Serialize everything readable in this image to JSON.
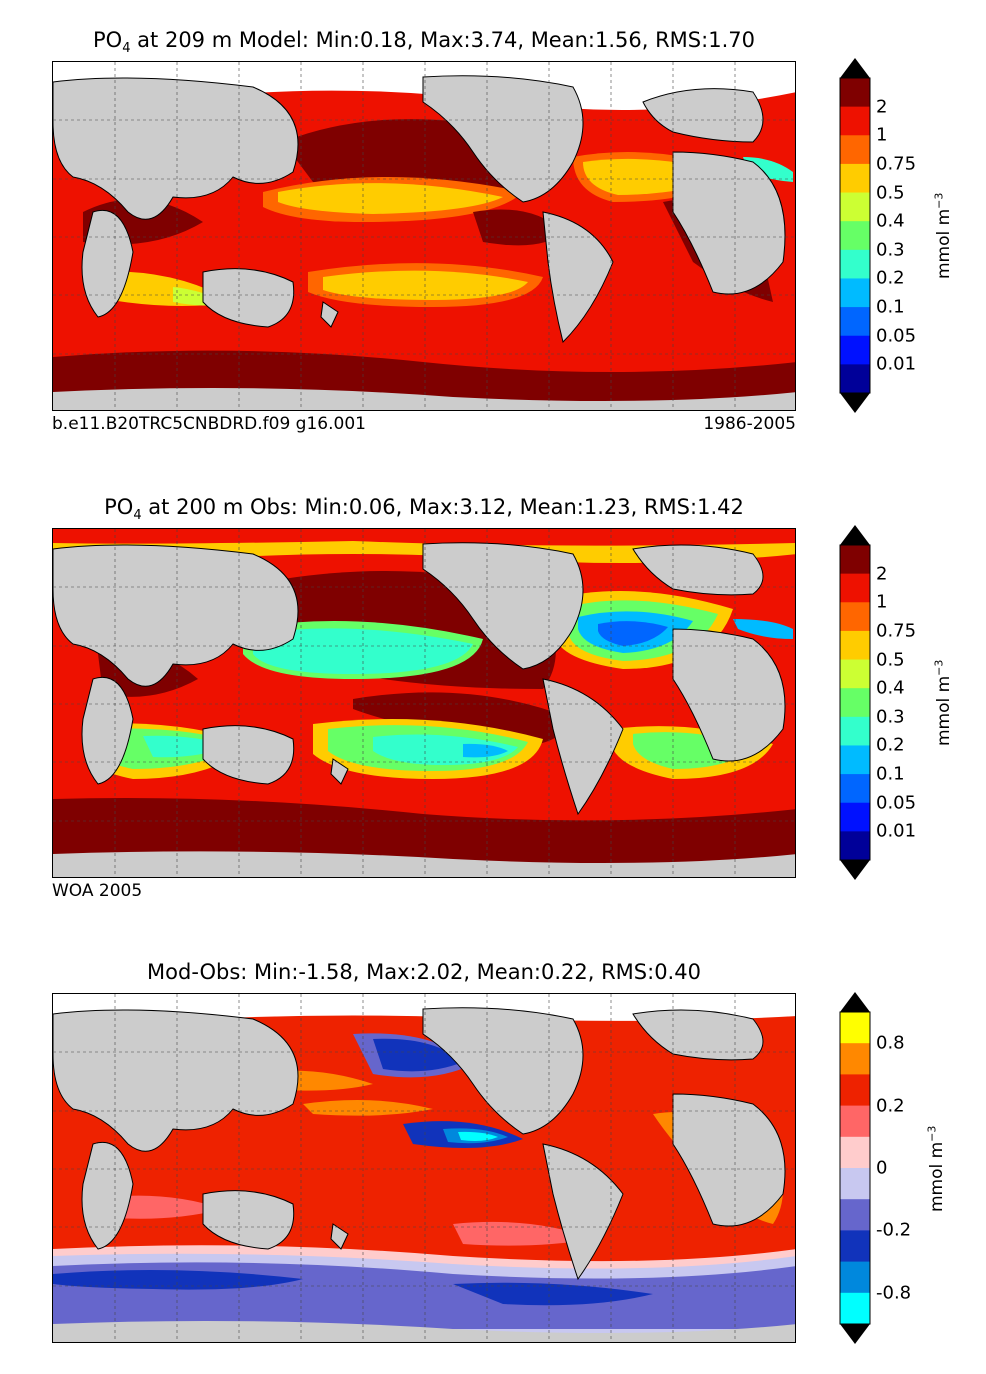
{
  "panels": [
    {
      "title_main": "PO",
      "title_sub": "4",
      "title_rest": "  at 209 m Model: Min:0.18, Max:3.74, Mean:1.56, RMS:1.70",
      "caption_left": "b.e11.B20TRC5CNBDRD.f09 g16.001",
      "caption_right": "1986-2005",
      "colorbar": {
        "ticks": [
          "2",
          "1",
          "0.75",
          "0.5",
          "0.4",
          "0.3",
          "0.2",
          "0.1",
          "0.05",
          "0.01"
        ],
        "unit": "mmol m",
        "unit_exp": "−3",
        "colors": [
          "#7f0000",
          "#ee1100",
          "#ff6600",
          "#ffcc00",
          "#ccff33",
          "#66ff66",
          "#33ffcc",
          "#00bbff",
          "#0066ff",
          "#0011ff",
          "#000099"
        ]
      }
    },
    {
      "title_main": "PO",
      "title_sub": "4",
      "title_rest": "  at 200 m Obs: Min:0.06, Max:3.12, Mean:1.23, RMS:1.42",
      "caption_left": "WOA 2005",
      "caption_right": "",
      "colorbar": {
        "ticks": [
          "2",
          "1",
          "0.75",
          "0.5",
          "0.4",
          "0.3",
          "0.2",
          "0.1",
          "0.05",
          "0.01"
        ],
        "unit": "mmol m",
        "unit_exp": "−3",
        "colors": [
          "#7f0000",
          "#ee1100",
          "#ff6600",
          "#ffcc00",
          "#ccff33",
          "#66ff66",
          "#33ffcc",
          "#00bbff",
          "#0066ff",
          "#0011ff",
          "#000099"
        ]
      }
    },
    {
      "title_main": "Mod-Obs: Min:-1.58, Max:2.02, Mean:0.22, RMS:0.40",
      "title_sub": "",
      "title_rest": "",
      "caption_left": "",
      "caption_right": "",
      "colorbar": {
        "ticks": [
          "0.8",
          "0.2",
          "0",
          "-0.2",
          "-0.8"
        ],
        "unit": "mmol m",
        "unit_exp": "−3",
        "colors": [
          "#ffff00",
          "#ff8800",
          "#ee2200",
          "#ff6666",
          "#ffcccc",
          "#c8c8f0",
          "#6666cc",
          "#1133bb",
          "#0088dd",
          "#00ffff"
        ]
      }
    }
  ],
  "colors": {
    "land": "#cccccc",
    "ice": "#ffffff",
    "frame": "#000000"
  }
}
